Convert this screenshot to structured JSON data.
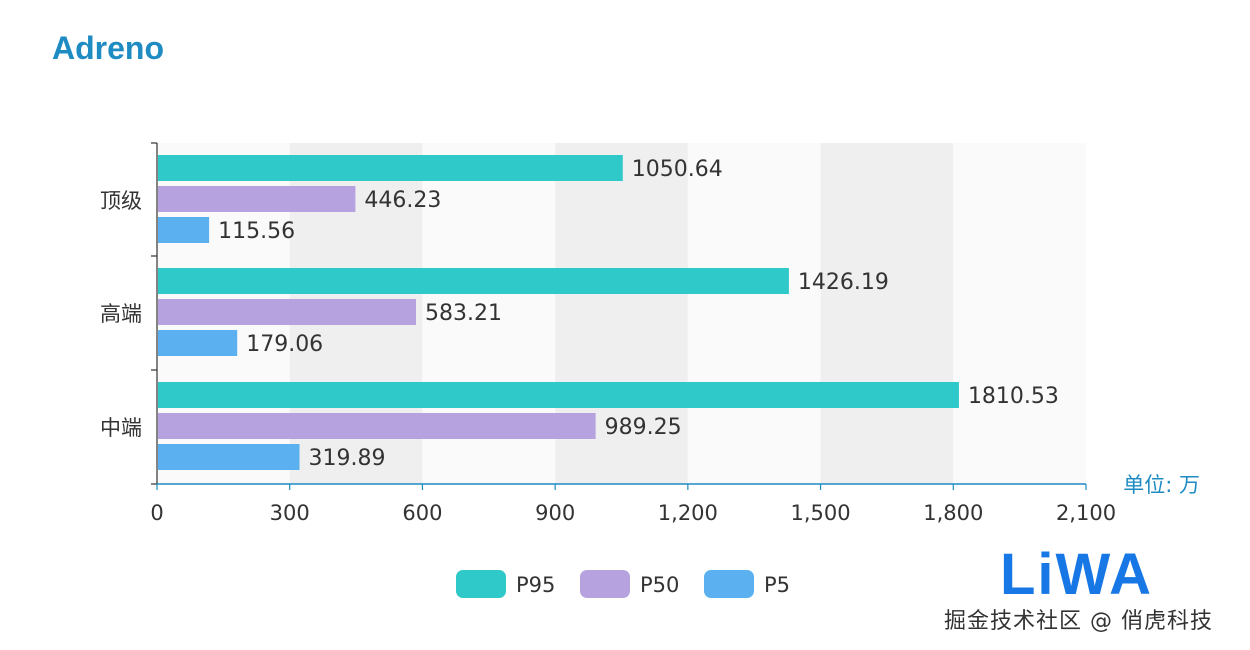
{
  "chart_data": {
    "type": "bar",
    "orientation": "horizontal",
    "title": "Adreno",
    "categories": [
      "顶级",
      "高端",
      "中端"
    ],
    "series": [
      {
        "name": "P95",
        "color": "#30c9c9",
        "values": [
          1050.64,
          1426.19,
          1810.53
        ]
      },
      {
        "name": "P50",
        "color": "#b5a2de",
        "values": [
          446.23,
          583.21,
          989.25
        ]
      },
      {
        "name": "P5",
        "color": "#5bb1ef",
        "values": [
          115.56,
          179.06,
          319.89
        ]
      }
    ],
    "value_labels": [
      [
        "1050.64",
        "1426.19",
        "1810.53"
      ],
      [
        "446.23",
        "583.21",
        "989.25"
      ],
      [
        "115.56",
        "179.06",
        "319.89"
      ]
    ],
    "xlim": [
      0,
      2100
    ],
    "x_ticks": [
      0,
      300,
      600,
      900,
      1200,
      1500,
      1800,
      2100
    ],
    "x_tick_labels": [
      "0",
      "300",
      "600",
      "900",
      "1,200",
      "1,500",
      "1,800",
      "2,100"
    ],
    "xlabel": "单位: 万",
    "ylabel": "",
    "legend_position": "bottom-center",
    "grid": "alternating-bands"
  },
  "colors": {
    "title": "#1e8bc3",
    "axis": "#1e8bc3",
    "band": "#efefef",
    "band_alt": "#fafafa"
  },
  "watermark": {
    "logo_text": "LiWA",
    "logo_color": "#1677e5",
    "caption": "掘金技术社区 @ 俏虎科技"
  }
}
